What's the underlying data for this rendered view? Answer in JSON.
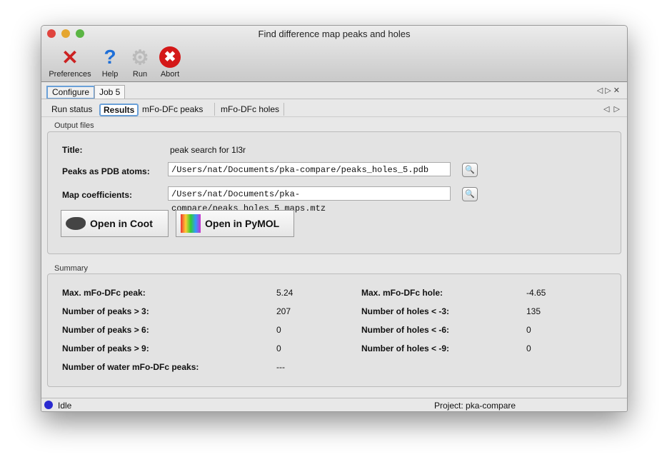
{
  "window": {
    "title": "Find difference map peaks and holes"
  },
  "toolbar": [
    {
      "label": "Preferences",
      "icon": "preferences-icon"
    },
    {
      "label": "Help",
      "icon": "help-icon"
    },
    {
      "label": "Run",
      "icon": "run-gear-icon"
    },
    {
      "label": "Abort",
      "icon": "abort-icon"
    }
  ],
  "tabs": [
    {
      "label": "Configure"
    },
    {
      "label": "Job 5",
      "selected": true
    }
  ],
  "subtabs": [
    {
      "label": "Run status"
    },
    {
      "label": "Results",
      "selected": true
    },
    {
      "label": "mFo-DFc peaks"
    },
    {
      "label": "mFo-DFc holes"
    }
  ],
  "output": {
    "group": "Output files",
    "title_label": "Title:",
    "title_value": "peak search for 1l3r",
    "pdb_label": "Peaks as PDB atoms:",
    "pdb_value": "/Users/nat/Documents/pka-compare/peaks_holes_5.pdb",
    "map_label": "Map coefficients:",
    "map_value": "/Users/nat/Documents/pka-compare/peaks_holes_5_maps.mtz",
    "coot": "Open in Coot",
    "pymol": "Open in PyMOL"
  },
  "summary": {
    "group": "Summary",
    "left": [
      {
        "k": "Max. mFo-DFc peak:",
        "v": "5.24"
      },
      {
        "k": "Number of peaks > 3:",
        "v": "207"
      },
      {
        "k": "Number of peaks > 6:",
        "v": "0"
      },
      {
        "k": "Number of peaks > 9:",
        "v": "0"
      },
      {
        "k": "Number of water mFo-DFc peaks:",
        "v": "---"
      }
    ],
    "right": [
      {
        "k": "Max. mFo-DFc hole:",
        "v": "-4.65"
      },
      {
        "k": "Number of holes < -3:",
        "v": "135"
      },
      {
        "k": "Number of holes < -6:",
        "v": "0"
      },
      {
        "k": "Number of holes < -9:",
        "v": "0"
      }
    ]
  },
  "status": {
    "text": "Idle",
    "project": "Project: pka-compare",
    "indicator_color": "#2a2ad0"
  }
}
